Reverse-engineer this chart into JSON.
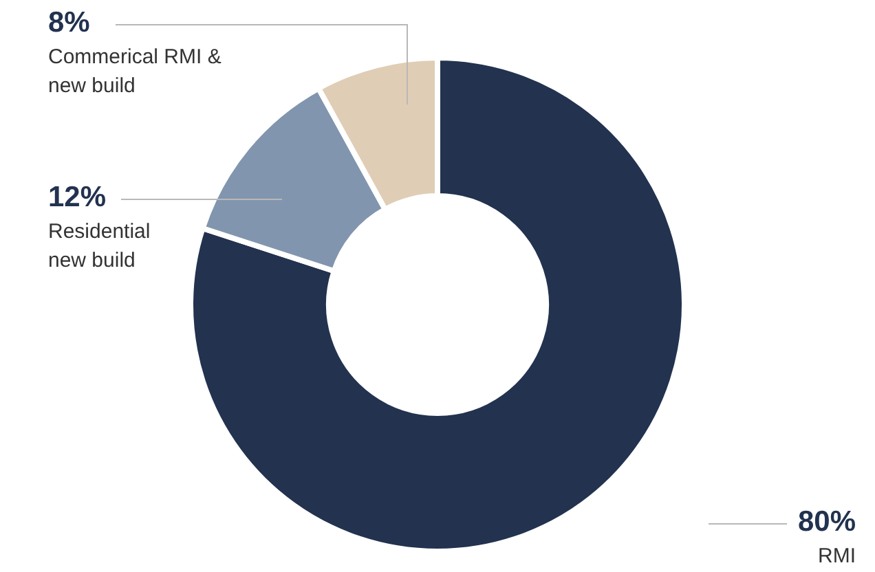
{
  "chart_data": {
    "type": "donut",
    "categories": [
      "RMI",
      "Residential new build",
      "Commerical RMI & new build"
    ],
    "values": [
      80,
      12,
      8
    ],
    "colors": [
      "#22324f",
      "#8195ae",
      "#e0cdb5"
    ],
    "value_labels": [
      "80%",
      "12%",
      "8%"
    ],
    "legend": false
  }
}
